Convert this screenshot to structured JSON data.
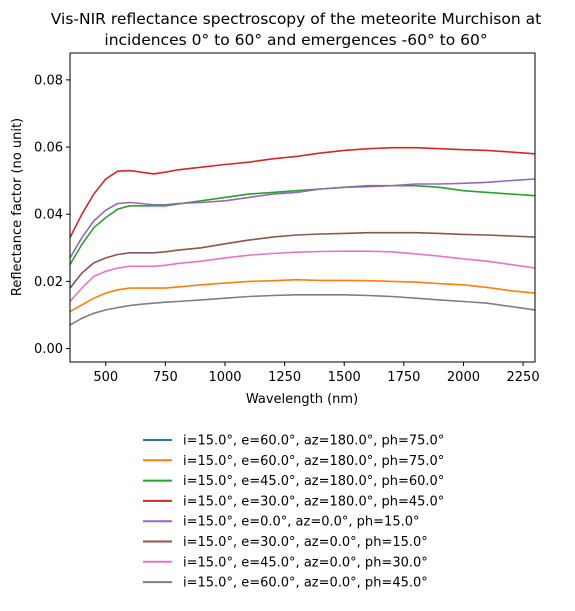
{
  "chart_data": {
    "type": "line",
    "title_lines": [
      "Vis-NIR reflectance spectroscopy of the meteorite Murchison at",
      "incidences 0° to 60° and emergences -60° to 60°"
    ],
    "xlabel": "Wavelength (nm)",
    "ylabel": "Reflectance factor (no unit)",
    "xlim": [
      350,
      2300
    ],
    "ylim": [
      -0.004,
      0.088
    ],
    "xticks": [
      500,
      750,
      1000,
      1250,
      1500,
      1750,
      2000,
      2250
    ],
    "yticks": [
      0.0,
      0.02,
      0.04,
      0.06,
      0.08
    ],
    "ytick_labels": [
      "0.00",
      "0.02",
      "0.04",
      "0.06",
      "0.08"
    ],
    "grid": false,
    "legend_position": "below plot",
    "x": [
      350,
      400,
      450,
      500,
      550,
      600,
      650,
      700,
      750,
      800,
      900,
      1000,
      1100,
      1200,
      1300,
      1400,
      1500,
      1600,
      1700,
      1800,
      1900,
      2000,
      2100,
      2200,
      2300
    ],
    "series": [
      {
        "name": "i=15.0°, e=60.0°, az=180.0°, ph=75.0°",
        "color": "#1f77b4",
        "values": null
      },
      {
        "name": "i=15.0°, e=60.0°, az=180.0°, ph=75.0°",
        "color": "#ff7f0e",
        "values": [
          0.011,
          0.013,
          0.015,
          0.0165,
          0.0175,
          0.018,
          0.018,
          0.018,
          0.018,
          0.0183,
          0.019,
          0.0195,
          0.02,
          0.0202,
          0.0205,
          0.0203,
          0.0203,
          0.0202,
          0.02,
          0.0198,
          0.0193,
          0.019,
          0.0182,
          0.0172,
          0.0165
        ]
      },
      {
        "name": "i=15.0°, e=45.0°, az=180.0°, ph=60.0°",
        "color": "#2ca02c",
        "values": [
          0.025,
          0.031,
          0.036,
          0.039,
          0.0415,
          0.0425,
          0.0425,
          0.0425,
          0.0425,
          0.043,
          0.044,
          0.045,
          0.046,
          0.0465,
          0.047,
          0.0475,
          0.048,
          0.0485,
          0.0485,
          0.0485,
          0.048,
          0.047,
          0.0465,
          0.046,
          0.0455
        ]
      },
      {
        "name": "i=15.0°, e=30.0°, az=180.0°, ph=45.0°",
        "color": "#d62728",
        "values": [
          0.033,
          0.04,
          0.046,
          0.0505,
          0.0528,
          0.053,
          0.0525,
          0.052,
          0.0525,
          0.0532,
          0.054,
          0.0548,
          0.0555,
          0.0565,
          0.0572,
          0.0582,
          0.059,
          0.0595,
          0.0598,
          0.0598,
          0.0595,
          0.0592,
          0.059,
          0.0585,
          0.058
        ]
      },
      {
        "name": "i=15.0°, e=0.0°, az=0.0°, ph=15.0°",
        "color": "#9467bd",
        "values": [
          0.027,
          0.033,
          0.038,
          0.0412,
          0.0432,
          0.0435,
          0.0432,
          0.0428,
          0.0428,
          0.0432,
          0.0435,
          0.044,
          0.045,
          0.046,
          0.0465,
          0.0475,
          0.048,
          0.0482,
          0.0485,
          0.049,
          0.049,
          0.0492,
          0.0495,
          0.05,
          0.0505
        ]
      },
      {
        "name": "i=15.0°, e=30.0°, az=0.0°, ph=15.0°",
        "color": "#8c564b",
        "values": [
          0.018,
          0.0225,
          0.0255,
          0.027,
          0.028,
          0.0285,
          0.0285,
          0.0285,
          0.0288,
          0.0293,
          0.03,
          0.0312,
          0.0323,
          0.0332,
          0.0338,
          0.0341,
          0.0343,
          0.0345,
          0.0345,
          0.0345,
          0.0343,
          0.034,
          0.0338,
          0.0335,
          0.0332
        ]
      },
      {
        "name": "i=15.0°, e=45.0°, az=0.0°, ph=30.0°",
        "color": "#e377c2",
        "values": [
          0.014,
          0.018,
          0.0215,
          0.023,
          0.024,
          0.0245,
          0.0245,
          0.0245,
          0.0248,
          0.0253,
          0.026,
          0.027,
          0.0278,
          0.0283,
          0.0287,
          0.0289,
          0.029,
          0.029,
          0.0288,
          0.0282,
          0.0275,
          0.0267,
          0.026,
          0.025,
          0.024
        ]
      },
      {
        "name": "i=15.0°, e=60.0°, az=0.0°, ph=45.0°",
        "color": "#7f7f7f",
        "values": [
          0.007,
          0.009,
          0.0105,
          0.0115,
          0.0122,
          0.0128,
          0.0132,
          0.0135,
          0.0138,
          0.014,
          0.0145,
          0.015,
          0.0155,
          0.0158,
          0.016,
          0.016,
          0.016,
          0.0158,
          0.0155,
          0.015,
          0.0145,
          0.014,
          0.0135,
          0.0125,
          0.0115
        ]
      }
    ]
  }
}
